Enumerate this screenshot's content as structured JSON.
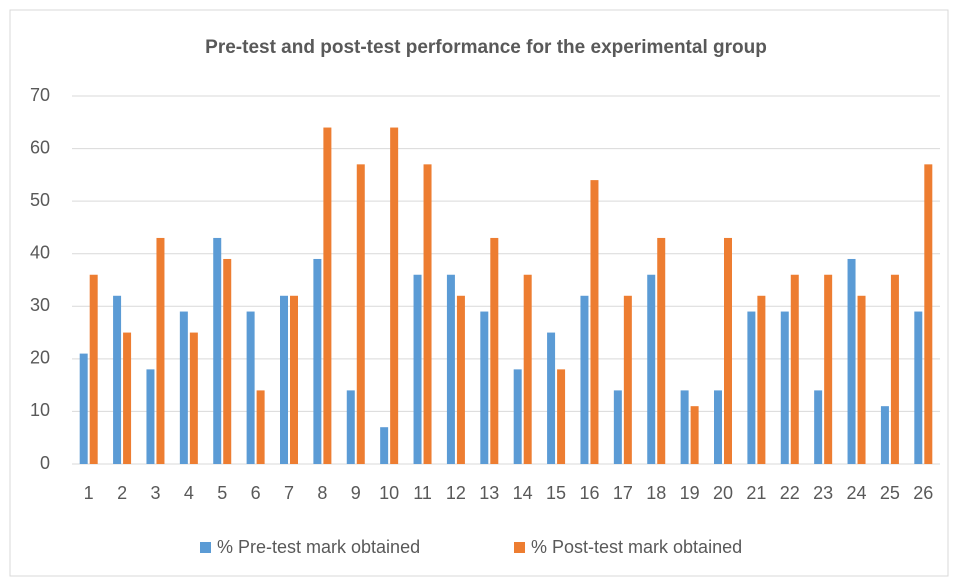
{
  "chart_data": {
    "type": "bar",
    "title": "Pre-test and post-test performance for the experimental group",
    "categories": [
      "1",
      "2",
      "3",
      "4",
      "5",
      "6",
      "7",
      "8",
      "9",
      "10",
      "11",
      "12",
      "13",
      "14",
      "15",
      "16",
      "17",
      "18",
      "19",
      "20",
      "21",
      "22",
      "23",
      "24",
      "25",
      "26"
    ],
    "series": [
      {
        "name": "% Pre-test mark obtained",
        "color": "#5b9bd5",
        "values": [
          21,
          32,
          18,
          29,
          43,
          29,
          32,
          39,
          14,
          7,
          36,
          36,
          29,
          18,
          25,
          32,
          14,
          36,
          14,
          14,
          29,
          29,
          14,
          39,
          11,
          29
        ]
      },
      {
        "name": "% Post-test mark obtained",
        "color": "#ed7d31",
        "values": [
          36,
          25,
          43,
          25,
          39,
          14,
          32,
          64,
          57,
          64,
          57,
          32,
          43,
          36,
          18,
          54,
          32,
          43,
          11,
          43,
          32,
          36,
          36,
          32,
          36,
          57
        ]
      }
    ],
    "ylim": [
      0,
      70
    ],
    "yticks": [
      0,
      10,
      20,
      30,
      40,
      50,
      60,
      70
    ],
    "grid": true,
    "legend": "bottom"
  }
}
